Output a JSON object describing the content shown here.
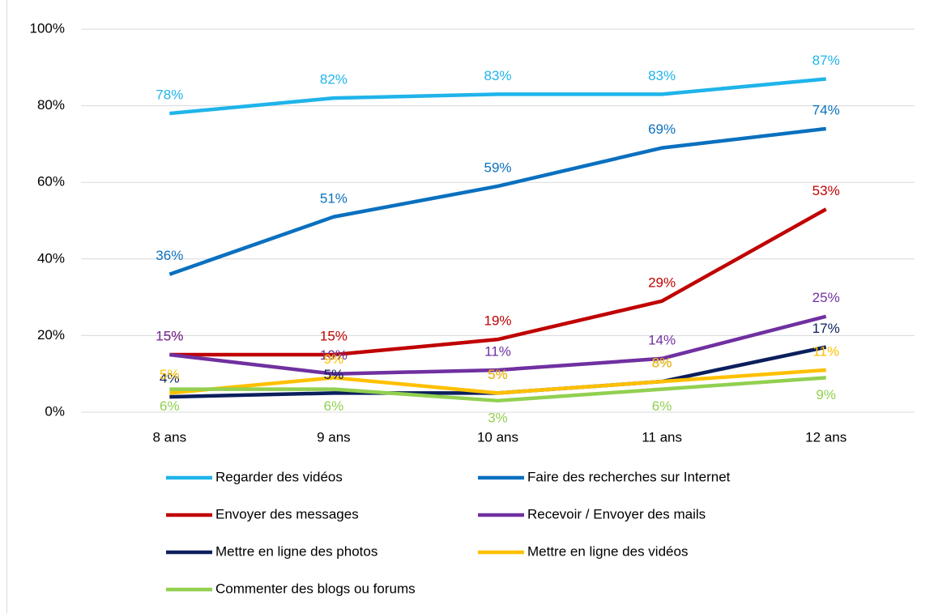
{
  "chart_data": {
    "type": "line",
    "categories": [
      "8 ans",
      "9 ans",
      "10 ans",
      "11 ans",
      "12 ans"
    ],
    "series": [
      {
        "name": "Regarder des vidéos",
        "color": "#1fb4ea",
        "values": [
          78,
          82,
          83,
          83,
          87
        ],
        "value_labels": [
          "78%",
          "82%",
          "83%",
          "83%",
          "87%"
        ]
      },
      {
        "name": "Faire des recherches sur Internet",
        "color": "#0a70bf",
        "values": [
          36,
          51,
          59,
          69,
          74
        ],
        "value_labels": [
          "36%",
          "51%",
          "59%",
          "69%",
          "74%"
        ]
      },
      {
        "name": "Envoyer des messages",
        "color": "#c00000",
        "values": [
          15,
          15,
          19,
          29,
          53
        ],
        "value_labels": [
          "15%",
          "15%",
          "19%",
          "29%",
          "53%"
        ]
      },
      {
        "name": "Recevoir / Envoyer des mails",
        "color": "#7030a0",
        "values": [
          15,
          10,
          11,
          14,
          25
        ],
        "value_labels": [
          "15%",
          "10%",
          "11%",
          "14%",
          "25%"
        ]
      },
      {
        "name": "Mettre en ligne des photos",
        "color": "#0b1f5c",
        "values": [
          4,
          5,
          5,
          8,
          17
        ],
        "value_labels": [
          "4%",
          "5%",
          "5%",
          "8%",
          "17%"
        ]
      },
      {
        "name": "Mettre en ligne des vidéos",
        "color": "#ffc000",
        "values": [
          5,
          9,
          5,
          8,
          11
        ],
        "value_labels": [
          "5%",
          "9%",
          "5%",
          "8%",
          "11%"
        ]
      },
      {
        "name": "Commenter des blogs ou forums",
        "color": "#92d050",
        "values": [
          6,
          6,
          3,
          6,
          9
        ],
        "value_labels": [
          "6%",
          "6%",
          "3%",
          "6%",
          "9%"
        ]
      }
    ],
    "ylim": [
      0,
      100
    ],
    "yticks": [
      {
        "value": 0,
        "label": "0%"
      },
      {
        "value": 20,
        "label": "20%"
      },
      {
        "value": 40,
        "label": "40%"
      },
      {
        "value": 60,
        "label": "60%"
      },
      {
        "value": 80,
        "label": "80%"
      },
      {
        "value": 100,
        "label": "100%"
      }
    ],
    "grid": true
  }
}
